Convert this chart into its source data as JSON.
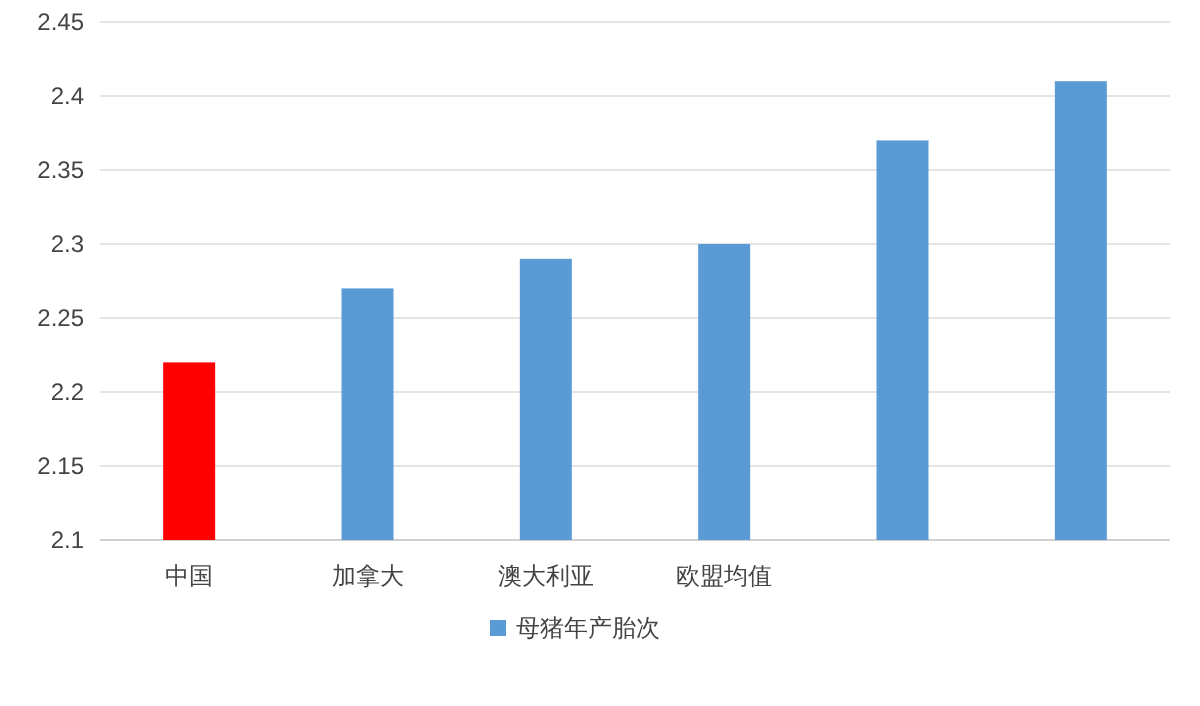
{
  "chart_data": {
    "type": "bar",
    "categories": [
      "中国",
      "加拿大",
      "澳大利亚",
      "欧盟均值",
      null,
      null
    ],
    "series": [
      {
        "name": "母猪年产胎次",
        "color": "#5b9bd5",
        "colors": [
          "#ff0000",
          "#5b9bd5",
          "#5b9bd5",
          "#5b9bd5",
          "#5b9bd5",
          "#5b9bd5"
        ],
        "values": [
          2.22,
          2.27,
          2.29,
          2.3,
          2.37,
          2.41
        ]
      }
    ],
    "ylim": [
      2.1,
      2.45
    ],
    "yticks": [
      2.1,
      2.15,
      2.2,
      2.25,
      2.3,
      2.35,
      2.4,
      2.45
    ],
    "grid": "y",
    "legend": "bottom"
  }
}
